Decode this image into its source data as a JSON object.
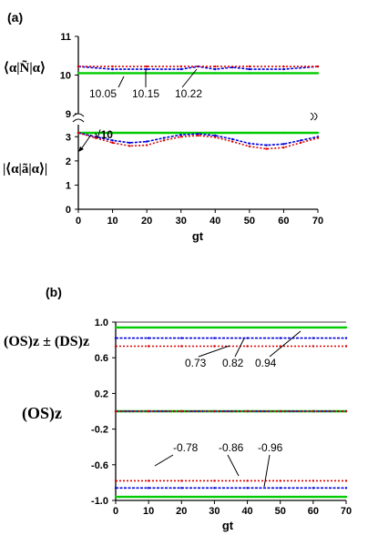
{
  "panel_a": {
    "label": "(a)",
    "ylabel_top": "⟨α|Ñ|α⟩",
    "ylabel_bottom": "|⟨α|ã|α⟩|",
    "xlabel": "gt",
    "x_ticks": [
      "0",
      "10",
      "20",
      "30",
      "40",
      "50",
      "60",
      "70"
    ],
    "y_ticks_top": [
      "11",
      "10",
      "9"
    ],
    "y_ticks_bottom": [
      "3",
      "2",
      "1",
      "0"
    ],
    "annotations": [
      "10.05",
      "10.15",
      "10.22",
      "√10"
    ]
  },
  "panel_b": {
    "label": "(b)",
    "ylabel_top": "(OS)z ± (DS)z",
    "ylabel_bottom": "(OS)z",
    "xlabel": "gt",
    "x_ticks": [
      "0",
      "10",
      "20",
      "30",
      "40",
      "50",
      "60",
      "70"
    ],
    "y_ticks": [
      "1.0",
      "0.6",
      "0.2",
      "-0.2",
      "-0.6",
      "-1.0"
    ],
    "annotations_top": [
      "0.73",
      "0.82",
      "0.94"
    ],
    "annotations_bottom": [
      "-0.78",
      "-0.86",
      "-0.96"
    ]
  },
  "colors": {
    "green": "#00cc00",
    "blue": "#0000dd",
    "red": "#dd0000"
  },
  "chart_data": [
    {
      "type": "line",
      "panel": "(a) upper",
      "x_range": [
        0,
        70
      ],
      "y_range": [
        9,
        11
      ],
      "ylabel": "⟨α|Ñ|α⟩",
      "series": [
        {
          "color": "green",
          "x": [
            0,
            10,
            20,
            30,
            40,
            50,
            60,
            70
          ],
          "y": [
            10.05,
            10.05,
            10.05,
            10.05,
            10.05,
            10.05,
            10.05,
            10.05
          ]
        },
        {
          "color": "blue",
          "x": [
            0,
            10,
            20,
            30,
            35,
            40,
            45,
            50,
            60,
            70
          ],
          "y": [
            10.22,
            10.15,
            10.15,
            10.15,
            10.22,
            10.15,
            10.2,
            10.15,
            10.15,
            10.22
          ]
        },
        {
          "color": "red",
          "x": [
            0,
            10,
            20,
            30,
            40,
            50,
            60,
            70
          ],
          "y": [
            10.22,
            10.22,
            10.22,
            10.22,
            10.22,
            10.22,
            10.22,
            10.22
          ]
        }
      ]
    },
    {
      "type": "line",
      "panel": "(a) lower",
      "x_range": [
        0,
        70
      ],
      "y_range": [
        0,
        3.5
      ],
      "xlabel": "gt",
      "ylabel": "|⟨α|ã|α⟩|",
      "series": [
        {
          "color": "green",
          "x": [
            0,
            10,
            20,
            30,
            40,
            50,
            60,
            70
          ],
          "y": [
            3.16,
            3.16,
            3.16,
            3.16,
            3.16,
            3.16,
            3.16,
            3.16
          ]
        },
        {
          "color": "blue",
          "x": [
            0,
            5,
            10,
            15,
            20,
            25,
            30,
            35,
            40,
            45,
            50,
            55,
            60,
            65,
            70
          ],
          "y": [
            3.16,
            3.0,
            2.85,
            2.75,
            2.8,
            2.95,
            3.08,
            3.12,
            3.05,
            2.9,
            2.72,
            2.65,
            2.7,
            2.85,
            3.0
          ]
        },
        {
          "color": "red",
          "x": [
            0,
            5,
            10,
            15,
            20,
            25,
            30,
            35,
            40,
            45,
            50,
            55,
            60,
            65,
            70
          ],
          "y": [
            3.16,
            2.95,
            2.75,
            2.62,
            2.65,
            2.85,
            3.0,
            3.05,
            2.98,
            2.8,
            2.6,
            2.5,
            2.55,
            2.75,
            2.95
          ]
        }
      ]
    },
    {
      "type": "line",
      "panel": "(b)",
      "x_range": [
        0,
        70
      ],
      "y_range": [
        -1.0,
        1.0
      ],
      "xlabel": "gt",
      "ylabel": "(OS)z ± (DS)z",
      "series": [
        {
          "color": "green",
          "x": [
            0,
            10,
            20,
            30,
            40,
            50,
            60,
            70
          ],
          "y": [
            0.94,
            0.94,
            0.94,
            0.94,
            0.94,
            0.94,
            0.94,
            0.94
          ]
        },
        {
          "color": "blue",
          "x": [
            0,
            10,
            20,
            30,
            40,
            50,
            60,
            70
          ],
          "y": [
            0.82,
            0.82,
            0.82,
            0.82,
            0.82,
            0.82,
            0.82,
            0.82
          ]
        },
        {
          "color": "red",
          "x": [
            0,
            10,
            20,
            30,
            40,
            50,
            60,
            70
          ],
          "y": [
            0.73,
            0.73,
            0.73,
            0.73,
            0.73,
            0.73,
            0.73,
            0.73
          ]
        },
        {
          "color": "green",
          "x": [
            0,
            10,
            20,
            30,
            40,
            50,
            60,
            70
          ],
          "y": [
            0,
            0,
            0,
            0,
            0,
            0,
            0,
            0
          ]
        },
        {
          "color": "blue",
          "x": [
            0,
            10,
            20,
            30,
            40,
            50,
            60,
            70
          ],
          "y": [
            0,
            0,
            0,
            0,
            0,
            0,
            0,
            0
          ]
        },
        {
          "color": "red",
          "x": [
            0,
            10,
            20,
            30,
            40,
            50,
            60,
            70
          ],
          "y": [
            0,
            0,
            0,
            0,
            0,
            0,
            0,
            0
          ]
        },
        {
          "color": "red",
          "x": [
            0,
            10,
            20,
            30,
            40,
            50,
            60,
            70
          ],
          "y": [
            -0.78,
            -0.78,
            -0.78,
            -0.78,
            -0.78,
            -0.78,
            -0.78,
            -0.78
          ]
        },
        {
          "color": "blue",
          "x": [
            0,
            10,
            20,
            30,
            40,
            50,
            60,
            70
          ],
          "y": [
            -0.86,
            -0.86,
            -0.86,
            -0.86,
            -0.86,
            -0.86,
            -0.86,
            -0.86
          ]
        },
        {
          "color": "green",
          "x": [
            0,
            10,
            20,
            30,
            40,
            50,
            60,
            70
          ],
          "y": [
            -0.96,
            -0.96,
            -0.96,
            -0.96,
            -0.96,
            -0.96,
            -0.96,
            -0.96
          ]
        }
      ]
    }
  ]
}
